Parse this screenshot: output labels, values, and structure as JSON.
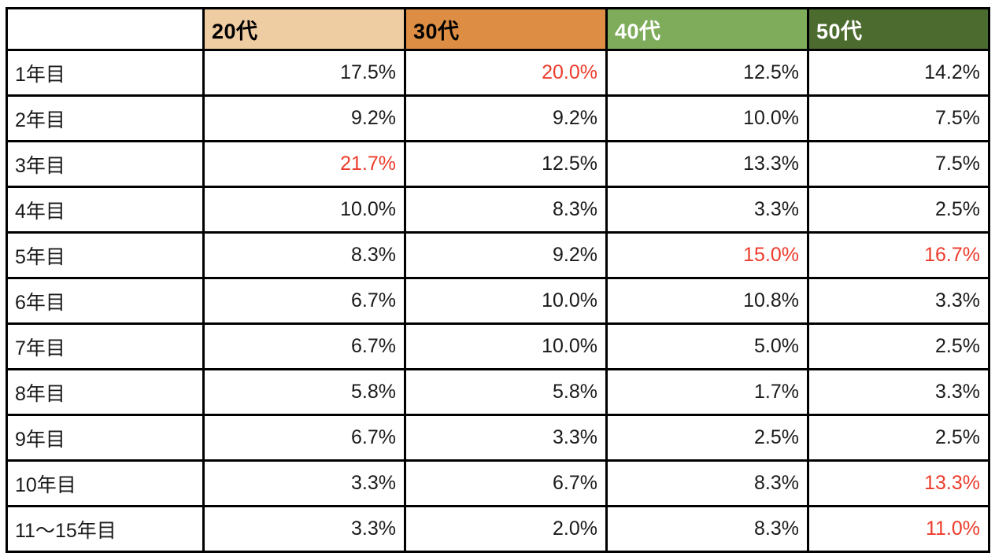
{
  "table": {
    "corner_label": "",
    "unit": "%",
    "border_color": "#000000",
    "value_text_color": "#1a1a1a",
    "highlight_color": "#ED3B2B",
    "columns": [
      {
        "label": "20代",
        "bg": "#EFCDA2",
        "fg": "#000000"
      },
      {
        "label": "30代",
        "bg": "#DD8E44",
        "fg": "#000000"
      },
      {
        "label": "40代",
        "bg": "#7EAC5B",
        "fg": "#FFFFFF"
      },
      {
        "label": "50代",
        "bg": "#4C6B2F",
        "fg": "#FFFFFF"
      }
    ],
    "rows": [
      {
        "label": "1年目",
        "cells": [
          {
            "value": "17.5%",
            "highlight": false
          },
          {
            "value": "20.0%",
            "highlight": true
          },
          {
            "value": "12.5%",
            "highlight": false
          },
          {
            "value": "14.2%",
            "highlight": false
          }
        ]
      },
      {
        "label": "2年目",
        "cells": [
          {
            "value": "9.2%",
            "highlight": false
          },
          {
            "value": "9.2%",
            "highlight": false
          },
          {
            "value": "10.0%",
            "highlight": false
          },
          {
            "value": "7.5%",
            "highlight": false
          }
        ]
      },
      {
        "label": "3年目",
        "cells": [
          {
            "value": "21.7%",
            "highlight": true
          },
          {
            "value": "12.5%",
            "highlight": false
          },
          {
            "value": "13.3%",
            "highlight": false
          },
          {
            "value": "7.5%",
            "highlight": false
          }
        ]
      },
      {
        "label": "4年目",
        "cells": [
          {
            "value": "10.0%",
            "highlight": false
          },
          {
            "value": "8.3%",
            "highlight": false
          },
          {
            "value": "3.3%",
            "highlight": false
          },
          {
            "value": "2.5%",
            "highlight": false
          }
        ]
      },
      {
        "label": "5年目",
        "cells": [
          {
            "value": "8.3%",
            "highlight": false
          },
          {
            "value": "9.2%",
            "highlight": false
          },
          {
            "value": "15.0%",
            "highlight": true
          },
          {
            "value": "16.7%",
            "highlight": true
          }
        ]
      },
      {
        "label": "6年目",
        "cells": [
          {
            "value": "6.7%",
            "highlight": false
          },
          {
            "value": "10.0%",
            "highlight": false
          },
          {
            "value": "10.8%",
            "highlight": false
          },
          {
            "value": "3.3%",
            "highlight": false
          }
        ]
      },
      {
        "label": "7年目",
        "cells": [
          {
            "value": "6.7%",
            "highlight": false
          },
          {
            "value": "10.0%",
            "highlight": false
          },
          {
            "value": "5.0%",
            "highlight": false
          },
          {
            "value": "2.5%",
            "highlight": false
          }
        ]
      },
      {
        "label": "8年目",
        "cells": [
          {
            "value": "5.8%",
            "highlight": false
          },
          {
            "value": "5.8%",
            "highlight": false
          },
          {
            "value": "1.7%",
            "highlight": false
          },
          {
            "value": "3.3%",
            "highlight": false
          }
        ]
      },
      {
        "label": "9年目",
        "cells": [
          {
            "value": "6.7%",
            "highlight": false
          },
          {
            "value": "3.3%",
            "highlight": false
          },
          {
            "value": "2.5%",
            "highlight": false
          },
          {
            "value": "2.5%",
            "highlight": false
          }
        ]
      },
      {
        "label": "10年目",
        "cells": [
          {
            "value": "3.3%",
            "highlight": false
          },
          {
            "value": "6.7%",
            "highlight": false
          },
          {
            "value": "8.3%",
            "highlight": false
          },
          {
            "value": "13.3%",
            "highlight": true
          }
        ]
      },
      {
        "label": "11〜15年目",
        "cells": [
          {
            "value": "3.3%",
            "highlight": false
          },
          {
            "value": "2.0%",
            "highlight": false
          },
          {
            "value": "8.3%",
            "highlight": false
          },
          {
            "value": "11.0%",
            "highlight": true
          }
        ]
      }
    ]
  },
  "chart_data": {
    "type": "table",
    "title": "",
    "categories": [
      "1年目",
      "2年目",
      "3年目",
      "4年目",
      "5年目",
      "6年目",
      "7年目",
      "8年目",
      "9年目",
      "10年目",
      "11〜15年目"
    ],
    "unit": "%",
    "series": [
      {
        "name": "20代",
        "values": [
          17.5,
          9.2,
          21.7,
          10.0,
          8.3,
          6.7,
          6.7,
          5.8,
          6.7,
          3.3,
          3.3
        ]
      },
      {
        "name": "30代",
        "values": [
          20.0,
          9.2,
          12.5,
          8.3,
          9.2,
          10.0,
          10.0,
          5.8,
          3.3,
          6.7,
          2.0
        ]
      },
      {
        "name": "40代",
        "values": [
          12.5,
          10.0,
          13.3,
          3.3,
          15.0,
          10.8,
          5.0,
          1.7,
          2.5,
          8.3,
          8.3
        ]
      },
      {
        "name": "50代",
        "values": [
          14.2,
          7.5,
          7.5,
          2.5,
          16.7,
          3.3,
          2.5,
          3.3,
          2.5,
          13.3,
          11.0
        ]
      }
    ],
    "highlighted_cells_red": [
      {
        "row": "1年目",
        "column": "30代",
        "value": 20.0
      },
      {
        "row": "3年目",
        "column": "20代",
        "value": 21.7
      },
      {
        "row": "5年目",
        "column": "40代",
        "value": 15.0
      },
      {
        "row": "5年目",
        "column": "50代",
        "value": 16.7
      },
      {
        "row": "10年目",
        "column": "50代",
        "value": 13.3
      },
      {
        "row": "11〜15年目",
        "column": "50代",
        "value": 11.0
      }
    ],
    "header_colors": {
      "20代": "#EFCDA2",
      "30代": "#DD8E44",
      "40代": "#7EAC5B",
      "50代": "#4C6B2F"
    }
  }
}
